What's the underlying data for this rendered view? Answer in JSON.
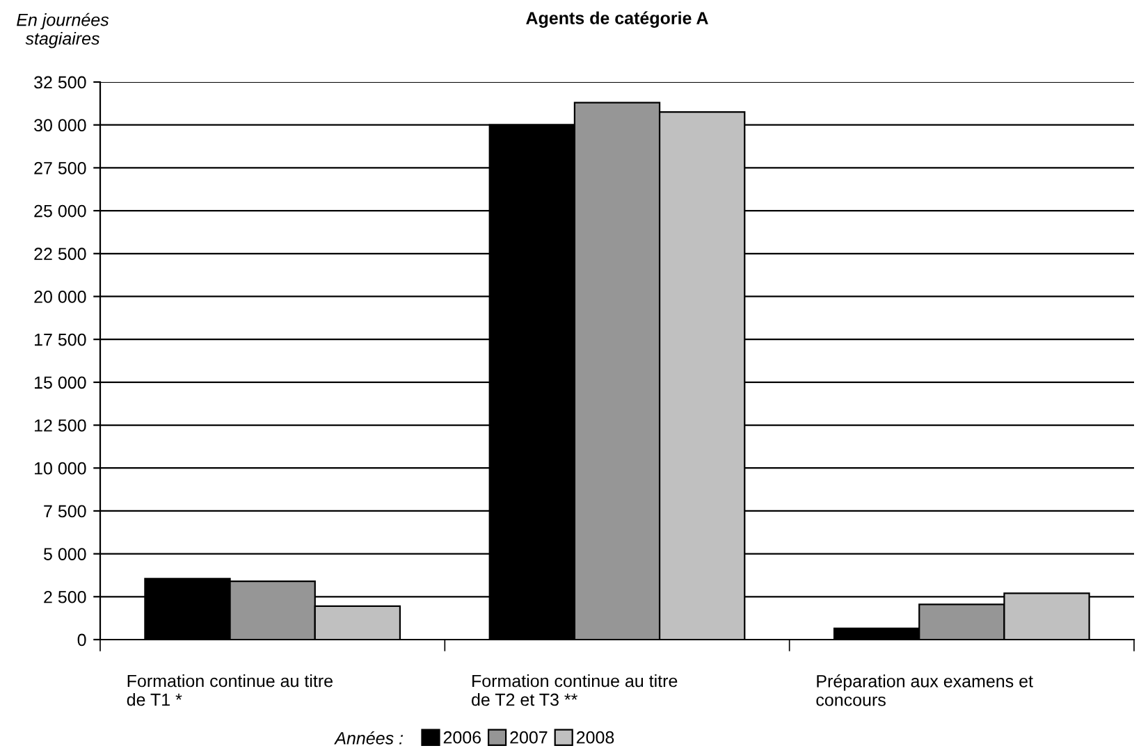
{
  "chart_data": {
    "type": "bar",
    "title": "Agents de catégorie A",
    "ylabel": "En journées\nstagiaires",
    "legend_title": "Années :",
    "categories": [
      "Formation continue au titre\nde T1 *",
      "Formation continue au titre\nde T2 et T3 **",
      "Préparation aux examens et\nconcours"
    ],
    "series": [
      {
        "name": "2006",
        "color": "#000000",
        "values": [
          3550,
          30000,
          650
        ]
      },
      {
        "name": "2007",
        "color": "#969696",
        "values": [
          3400,
          31300,
          2050
        ]
      },
      {
        "name": "2008",
        "color": "#c0c0c0",
        "values": [
          1950,
          30750,
          2700
        ]
      }
    ],
    "ylim": [
      0,
      32500
    ],
    "yticks": [
      {
        "value": 0,
        "label": "0"
      },
      {
        "value": 2500,
        "label": "2 500"
      },
      {
        "value": 5000,
        "label": "5 000"
      },
      {
        "value": 7500,
        "label": "7 500"
      },
      {
        "value": 10000,
        "label": "10 000"
      },
      {
        "value": 12500,
        "label": "12 500"
      },
      {
        "value": 15000,
        "label": "15 000"
      },
      {
        "value": 17500,
        "label": "17 500"
      },
      {
        "value": 20000,
        "label": "20 000"
      },
      {
        "value": 22500,
        "label": "22 500"
      },
      {
        "value": 25000,
        "label": "25 000"
      },
      {
        "value": 27500,
        "label": "27 500"
      },
      {
        "value": 30000,
        "label": "30 000"
      },
      {
        "value": 32500,
        "label": "32 500"
      }
    ],
    "grid": "y",
    "legend": "bottom"
  }
}
